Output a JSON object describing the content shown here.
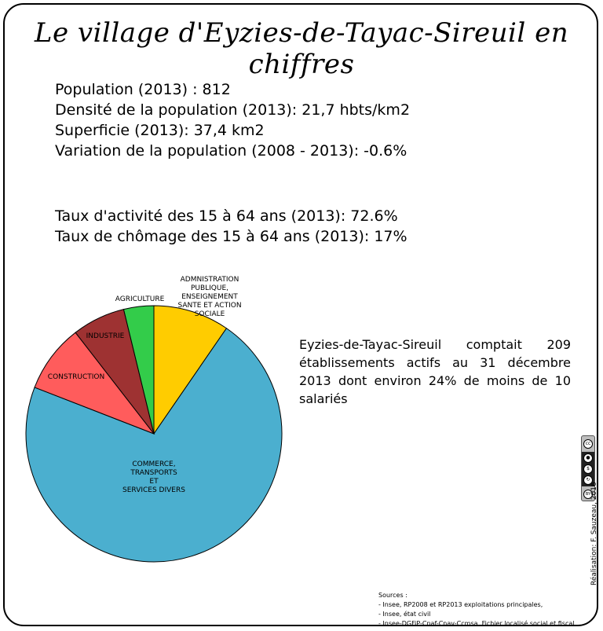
{
  "title": "Le village d'Eyzies-de-Tayac-Sireuil en chiffres",
  "stats_demography": [
    "Population (2013) : 812",
    "Densité de la population (2013): 21,7 hbts/km2",
    "Superficie (2013): 37,4 km2",
    "Variation de la population (2008 - 2013): -0.6%"
  ],
  "stats_activity": [
    "Taux d'activité des 15 à 64 ans (2013): 72.6%",
    "Taux de chômage des 15 à 64 ans (2013): 17%"
  ],
  "summary": "Eyzies-de-Tayac-Sireuil comptait 209 établissements actifs au 31 décembre 2013 dont environ 24% de moins de 10 salariés",
  "chart_data": {
    "type": "pie",
    "title": "",
    "slices": [
      {
        "label_lines": [
          "ADMNISTRATION",
          "PUBLIQUE,",
          "ENSEIGNEMENT",
          "SANTE ET ACTION",
          "SOCIALE"
        ],
        "value": 9.6,
        "color": "#ffcc00"
      },
      {
        "label_lines": [
          "COMMERCE,",
          "TRANSPORTS",
          "ET",
          "SERVICES DIVERS"
        ],
        "value": 71.3,
        "color": "#4bafcf"
      },
      {
        "label_lines": [
          "CONSTRUCTION"
        ],
        "value": 8.6,
        "color": "#ff5c5c"
      },
      {
        "label_lines": [
          "INDUSTRIE"
        ],
        "value": 6.7,
        "color": "#9e3232"
      },
      {
        "label_lines": [
          "AGRICULTURE"
        ],
        "value": 3.8,
        "color": "#33cc4a"
      }
    ]
  },
  "license_badge": {
    "cc": "cc",
    "by": "BY",
    "nc": "NC",
    "icons": [
      "cc-icon",
      "by-person-icon",
      "nc-dollar-icon",
      "sa-icon"
    ]
  },
  "credit": "Réalisation: F. Sauzeau, 2016",
  "sources": [
    "Sources :",
    "- Insee, RP2008 et RP2013 exploitations principales,",
    "- Insee, état civil",
    "- Insee-DGFiP-Cnaf-Cnav-Ccmsa, Fichier localisé social et fiscal."
  ]
}
